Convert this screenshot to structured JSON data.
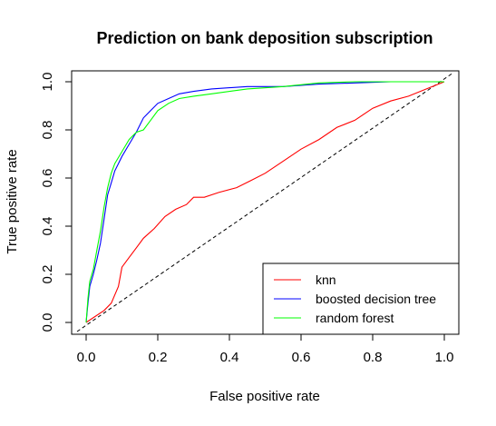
{
  "chart_data": {
    "type": "line",
    "title": "Prediction on bank deposition subscription",
    "xlabel": "False positive rate",
    "ylabel": "True positive rate",
    "xlim": [
      0.0,
      1.0
    ],
    "ylim": [
      0.0,
      1.0
    ],
    "x_ticks": [
      0.0,
      0.2,
      0.4,
      0.6,
      0.8,
      1.0
    ],
    "y_ticks": [
      0.0,
      0.2,
      0.4,
      0.6,
      0.8,
      1.0
    ],
    "x_tick_labels": [
      "0.0",
      "0.2",
      "0.4",
      "0.6",
      "0.8",
      "1.0"
    ],
    "y_tick_labels": [
      "0.0",
      "0.2",
      "0.4",
      "0.6",
      "0.8",
      "1.0"
    ],
    "grid": false,
    "legend_position": "bottom-right",
    "reference_line": {
      "style": "dashed",
      "color": "#000000",
      "from": [
        0,
        0
      ],
      "to": [
        1,
        1
      ]
    },
    "series": [
      {
        "name": "knn",
        "color": "#ff0000",
        "points": [
          [
            0,
            0
          ],
          [
            0.05,
            0.05
          ],
          [
            0.07,
            0.08
          ],
          [
            0.09,
            0.15
          ],
          [
            0.1,
            0.23
          ],
          [
            0.12,
            0.27
          ],
          [
            0.14,
            0.31
          ],
          [
            0.16,
            0.35
          ],
          [
            0.19,
            0.39
          ],
          [
            0.22,
            0.44
          ],
          [
            0.25,
            0.47
          ],
          [
            0.28,
            0.49
          ],
          [
            0.3,
            0.52
          ],
          [
            0.33,
            0.52
          ],
          [
            0.37,
            0.54
          ],
          [
            0.42,
            0.56
          ],
          [
            0.46,
            0.59
          ],
          [
            0.5,
            0.62
          ],
          [
            0.55,
            0.67
          ],
          [
            0.6,
            0.72
          ],
          [
            0.65,
            0.76
          ],
          [
            0.7,
            0.81
          ],
          [
            0.75,
            0.84
          ],
          [
            0.8,
            0.89
          ],
          [
            0.85,
            0.92
          ],
          [
            0.9,
            0.94
          ],
          [
            0.95,
            0.97
          ],
          [
            1.0,
            1.0
          ]
        ]
      },
      {
        "name": "boosted decision tree",
        "color": "#0000ff",
        "points": [
          [
            0,
            0
          ],
          [
            0.005,
            0.08
          ],
          [
            0.01,
            0.15
          ],
          [
            0.02,
            0.2
          ],
          [
            0.03,
            0.26
          ],
          [
            0.04,
            0.33
          ],
          [
            0.05,
            0.43
          ],
          [
            0.06,
            0.53
          ],
          [
            0.07,
            0.58
          ],
          [
            0.08,
            0.63
          ],
          [
            0.09,
            0.66
          ],
          [
            0.1,
            0.69
          ],
          [
            0.12,
            0.74
          ],
          [
            0.14,
            0.79
          ],
          [
            0.16,
            0.85
          ],
          [
            0.18,
            0.88
          ],
          [
            0.2,
            0.91
          ],
          [
            0.23,
            0.93
          ],
          [
            0.26,
            0.95
          ],
          [
            0.3,
            0.96
          ],
          [
            0.35,
            0.97
          ],
          [
            0.45,
            0.98
          ],
          [
            0.55,
            0.98
          ],
          [
            0.65,
            0.99
          ],
          [
            0.75,
            0.995
          ],
          [
            0.85,
            1.0
          ],
          [
            1.0,
            1.0
          ]
        ]
      },
      {
        "name": "random forest",
        "color": "#00ff00",
        "points": [
          [
            0,
            0
          ],
          [
            0.005,
            0.1
          ],
          [
            0.01,
            0.17
          ],
          [
            0.02,
            0.22
          ],
          [
            0.03,
            0.3
          ],
          [
            0.04,
            0.38
          ],
          [
            0.05,
            0.48
          ],
          [
            0.06,
            0.56
          ],
          [
            0.07,
            0.62
          ],
          [
            0.08,
            0.66
          ],
          [
            0.1,
            0.71
          ],
          [
            0.12,
            0.76
          ],
          [
            0.14,
            0.79
          ],
          [
            0.16,
            0.8
          ],
          [
            0.18,
            0.84
          ],
          [
            0.2,
            0.88
          ],
          [
            0.23,
            0.91
          ],
          [
            0.26,
            0.93
          ],
          [
            0.3,
            0.94
          ],
          [
            0.35,
            0.95
          ],
          [
            0.45,
            0.97
          ],
          [
            0.55,
            0.98
          ],
          [
            0.65,
            0.995
          ],
          [
            0.75,
            1.0
          ],
          [
            1.0,
            1.0
          ]
        ]
      }
    ]
  }
}
